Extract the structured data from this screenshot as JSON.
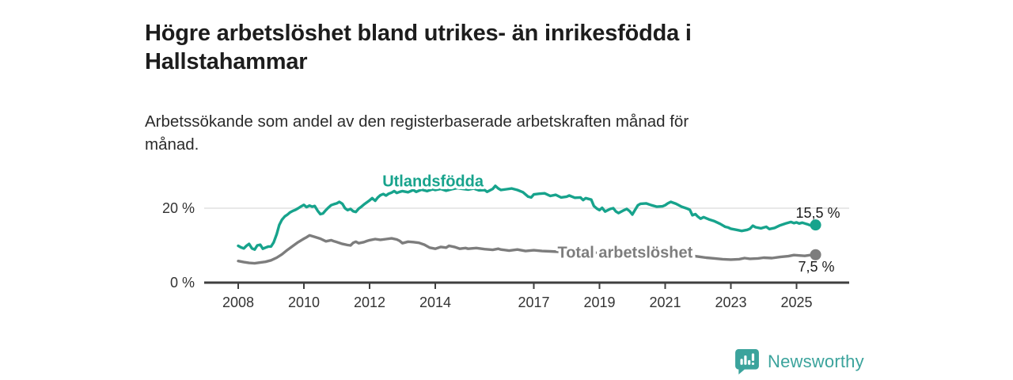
{
  "header": {
    "title": "Högre arbetslöshet bland utrikes- än inrikesfödda i Hallstahammar",
    "subtitle": "Arbetssökande som andel av den registerbaserade arbetskraften månad för månad."
  },
  "footer": {
    "brand": "Newsworthy",
    "logo_icon": "bar-chart-speech-bubble-icon",
    "brand_color": "#3ba39c"
  },
  "colors": {
    "foreign_born_line": "#17a38c",
    "total_line": "#7d7d7d",
    "axis": "#3f3f3f",
    "gridline": "#d9d9d9",
    "tick_text": "#333333",
    "value_label_text": "#1b1b1b"
  },
  "chart_data": {
    "type": "line",
    "title": "Högre arbetslöshet bland utrikes- än inrikesfödda i Hallstahammar",
    "subtitle": "Arbetssökande som andel av den registerbaserade arbetskraften månad för månad.",
    "unit": "%",
    "xlim": [
      2007.95,
      2025.75
    ],
    "ylim": [
      0,
      28
    ],
    "x_ticks": [
      {
        "value": 2008,
        "label": "2008"
      },
      {
        "value": 2010,
        "label": "2010"
      },
      {
        "value": 2012,
        "label": "2012"
      },
      {
        "value": 2014,
        "label": "2014"
      },
      {
        "value": 2017,
        "label": "2017"
      },
      {
        "value": 2019,
        "label": "2019"
      },
      {
        "value": 2021,
        "label": "2021"
      },
      {
        "value": 2023,
        "label": "2023"
      },
      {
        "value": 2025,
        "label": "2025"
      }
    ],
    "y_ticks": [
      {
        "value": 20,
        "label": "20 %",
        "grid": true
      },
      {
        "value": 0,
        "label": "0 %",
        "grid": false
      }
    ],
    "legend_position": "inline-labels",
    "series": [
      {
        "name": "Utlandsfödda",
        "color": "#17a38c",
        "end_value": 15.5,
        "end_label": "15,5 %",
        "end_label_side": "above",
        "label_at": [
          2013.93,
          27.3
        ],
        "points": [
          [
            2008.0,
            9.9
          ],
          [
            2008.08,
            9.5
          ],
          [
            2008.17,
            9.2
          ],
          [
            2008.25,
            9.9
          ],
          [
            2008.33,
            10.4
          ],
          [
            2008.42,
            9.2
          ],
          [
            2008.5,
            8.9
          ],
          [
            2008.58,
            10.0
          ],
          [
            2008.67,
            10.2
          ],
          [
            2008.75,
            9.1
          ],
          [
            2008.83,
            9.4
          ],
          [
            2008.92,
            9.7
          ],
          [
            2009.0,
            9.7
          ],
          [
            2009.08,
            10.8
          ],
          [
            2009.17,
            13.0
          ],
          [
            2009.25,
            15.5
          ],
          [
            2009.33,
            16.9
          ],
          [
            2009.42,
            17.8
          ],
          [
            2009.5,
            18.3
          ],
          [
            2009.58,
            18.9
          ],
          [
            2009.67,
            19.3
          ],
          [
            2009.75,
            19.6
          ],
          [
            2009.83,
            20.0
          ],
          [
            2009.92,
            20.5
          ],
          [
            2010.0,
            20.9
          ],
          [
            2010.08,
            20.3
          ],
          [
            2010.17,
            20.7
          ],
          [
            2010.25,
            20.4
          ],
          [
            2010.33,
            20.6
          ],
          [
            2010.42,
            19.3
          ],
          [
            2010.5,
            18.4
          ],
          [
            2010.58,
            18.6
          ],
          [
            2010.67,
            19.5
          ],
          [
            2010.75,
            20.2
          ],
          [
            2010.83,
            20.8
          ],
          [
            2010.92,
            21.1
          ],
          [
            2011.0,
            21.3
          ],
          [
            2011.08,
            21.7
          ],
          [
            2011.17,
            21.2
          ],
          [
            2011.25,
            20.0
          ],
          [
            2011.33,
            19.5
          ],
          [
            2011.42,
            19.8
          ],
          [
            2011.5,
            19.2
          ],
          [
            2011.58,
            19.0
          ],
          [
            2011.67,
            19.9
          ],
          [
            2011.75,
            20.4
          ],
          [
            2011.83,
            21.0
          ],
          [
            2011.92,
            21.6
          ],
          [
            2012.0,
            22.1
          ],
          [
            2012.08,
            22.7
          ],
          [
            2012.17,
            22.0
          ],
          [
            2012.25,
            22.9
          ],
          [
            2012.33,
            23.5
          ],
          [
            2012.42,
            23.8
          ],
          [
            2012.5,
            23.4
          ],
          [
            2012.58,
            23.9
          ],
          [
            2012.67,
            24.2
          ],
          [
            2012.75,
            24.6
          ],
          [
            2012.83,
            24.1
          ],
          [
            2012.92,
            24.4
          ],
          [
            2013.0,
            24.6
          ],
          [
            2013.17,
            24.3
          ],
          [
            2013.33,
            24.9
          ],
          [
            2013.42,
            24.4
          ],
          [
            2013.58,
            25.0
          ],
          [
            2013.75,
            24.6
          ],
          [
            2013.92,
            25.1
          ],
          [
            2014.0,
            24.9
          ],
          [
            2014.17,
            25.2
          ],
          [
            2014.33,
            24.7
          ],
          [
            2014.5,
            25.1
          ],
          [
            2014.67,
            25.4
          ],
          [
            2014.83,
            25.2
          ],
          [
            2015.0,
            25.0
          ],
          [
            2015.17,
            25.3
          ],
          [
            2015.33,
            24.8
          ],
          [
            2015.5,
            24.9
          ],
          [
            2015.58,
            24.4
          ],
          [
            2015.75,
            25.2
          ],
          [
            2015.83,
            26.0
          ],
          [
            2015.92,
            25.3
          ],
          [
            2016.0,
            24.9
          ],
          [
            2016.17,
            25.1
          ],
          [
            2016.33,
            25.3
          ],
          [
            2016.5,
            24.9
          ],
          [
            2016.67,
            24.3
          ],
          [
            2016.83,
            23.1
          ],
          [
            2016.92,
            22.9
          ],
          [
            2017.0,
            23.7
          ],
          [
            2017.17,
            23.9
          ],
          [
            2017.33,
            24.0
          ],
          [
            2017.5,
            23.3
          ],
          [
            2017.67,
            23.6
          ],
          [
            2017.83,
            22.9
          ],
          [
            2018.0,
            23.1
          ],
          [
            2018.08,
            23.4
          ],
          [
            2018.25,
            22.8
          ],
          [
            2018.42,
            22.9
          ],
          [
            2018.5,
            22.2
          ],
          [
            2018.58,
            22.7
          ],
          [
            2018.75,
            22.3
          ],
          [
            2018.83,
            20.6
          ],
          [
            2018.92,
            19.9
          ],
          [
            2019.0,
            19.5
          ],
          [
            2019.08,
            20.1
          ],
          [
            2019.17,
            19.1
          ],
          [
            2019.33,
            19.8
          ],
          [
            2019.42,
            20.0
          ],
          [
            2019.5,
            19.1
          ],
          [
            2019.58,
            18.7
          ],
          [
            2019.75,
            19.5
          ],
          [
            2019.83,
            19.8
          ],
          [
            2019.92,
            19.2
          ],
          [
            2020.0,
            18.3
          ],
          [
            2020.08,
            19.5
          ],
          [
            2020.17,
            20.8
          ],
          [
            2020.25,
            21.2
          ],
          [
            2020.42,
            21.3
          ],
          [
            2020.58,
            20.8
          ],
          [
            2020.75,
            20.4
          ],
          [
            2020.92,
            20.5
          ],
          [
            2021.0,
            20.8
          ],
          [
            2021.08,
            21.3
          ],
          [
            2021.17,
            21.7
          ],
          [
            2021.33,
            21.2
          ],
          [
            2021.5,
            20.4
          ],
          [
            2021.67,
            19.9
          ],
          [
            2021.75,
            19.6
          ],
          [
            2021.83,
            18.1
          ],
          [
            2021.92,
            18.4
          ],
          [
            2022.0,
            17.7
          ],
          [
            2022.08,
            17.2
          ],
          [
            2022.17,
            17.6
          ],
          [
            2022.33,
            17.0
          ],
          [
            2022.5,
            16.5
          ],
          [
            2022.67,
            15.8
          ],
          [
            2022.83,
            15.0
          ],
          [
            2022.92,
            14.8
          ],
          [
            2023.0,
            14.5
          ],
          [
            2023.17,
            14.2
          ],
          [
            2023.33,
            13.9
          ],
          [
            2023.5,
            14.2
          ],
          [
            2023.58,
            14.5
          ],
          [
            2023.67,
            15.3
          ],
          [
            2023.75,
            14.9
          ],
          [
            2023.92,
            14.6
          ],
          [
            2024.0,
            14.8
          ],
          [
            2024.08,
            15.0
          ],
          [
            2024.17,
            14.4
          ],
          [
            2024.33,
            14.7
          ],
          [
            2024.5,
            15.4
          ],
          [
            2024.67,
            15.9
          ],
          [
            2024.83,
            16.3
          ],
          [
            2024.92,
            16.0
          ],
          [
            2025.0,
            16.2
          ],
          [
            2025.08,
            15.9
          ],
          [
            2025.17,
            16.1
          ],
          [
            2025.33,
            15.7
          ],
          [
            2025.42,
            15.4
          ],
          [
            2025.58,
            15.5
          ]
        ]
      },
      {
        "name": "Total arbetslöshet",
        "color": "#7d7d7d",
        "end_value": 7.5,
        "end_label": "7,5 %",
        "end_label_side": "below",
        "label_at": [
          2019.78,
          8.2
        ],
        "points": [
          [
            2008.0,
            5.8
          ],
          [
            2008.17,
            5.5
          ],
          [
            2008.33,
            5.3
          ],
          [
            2008.5,
            5.2
          ],
          [
            2008.67,
            5.4
          ],
          [
            2008.83,
            5.6
          ],
          [
            2009.0,
            6.0
          ],
          [
            2009.17,
            6.7
          ],
          [
            2009.33,
            7.6
          ],
          [
            2009.5,
            8.8
          ],
          [
            2009.67,
            9.9
          ],
          [
            2009.83,
            10.9
          ],
          [
            2010.0,
            11.8
          ],
          [
            2010.08,
            12.2
          ],
          [
            2010.17,
            12.7
          ],
          [
            2010.33,
            12.3
          ],
          [
            2010.5,
            11.8
          ],
          [
            2010.67,
            11.1
          ],
          [
            2010.83,
            11.4
          ],
          [
            2010.92,
            11.1
          ],
          [
            2011.0,
            10.9
          ],
          [
            2011.17,
            10.4
          ],
          [
            2011.33,
            10.1
          ],
          [
            2011.42,
            10.0
          ],
          [
            2011.5,
            10.7
          ],
          [
            2011.58,
            11.0
          ],
          [
            2011.67,
            10.6
          ],
          [
            2011.83,
            10.9
          ],
          [
            2011.92,
            11.2
          ],
          [
            2012.0,
            11.4
          ],
          [
            2012.17,
            11.7
          ],
          [
            2012.33,
            11.5
          ],
          [
            2012.5,
            11.7
          ],
          [
            2012.67,
            11.9
          ],
          [
            2012.83,
            11.6
          ],
          [
            2012.92,
            11.2
          ],
          [
            2013.0,
            10.6
          ],
          [
            2013.17,
            11.0
          ],
          [
            2013.33,
            10.9
          ],
          [
            2013.5,
            10.7
          ],
          [
            2013.67,
            10.2
          ],
          [
            2013.83,
            9.4
          ],
          [
            2014.0,
            9.1
          ],
          [
            2014.17,
            9.6
          ],
          [
            2014.33,
            9.4
          ],
          [
            2014.42,
            9.9
          ],
          [
            2014.58,
            9.6
          ],
          [
            2014.75,
            9.1
          ],
          [
            2014.92,
            9.3
          ],
          [
            2015.0,
            9.1
          ],
          [
            2015.25,
            9.3
          ],
          [
            2015.5,
            9.0
          ],
          [
            2015.75,
            8.8
          ],
          [
            2015.92,
            9.1
          ],
          [
            2016.0,
            8.9
          ],
          [
            2016.25,
            8.6
          ],
          [
            2016.5,
            8.9
          ],
          [
            2016.75,
            8.5
          ],
          [
            2017.0,
            8.7
          ],
          [
            2017.25,
            8.5
          ],
          [
            2017.5,
            8.4
          ],
          [
            2017.75,
            8.3
          ],
          [
            2018.0,
            8.3
          ],
          [
            2018.5,
            8.1
          ],
          [
            2019.0,
            8.0
          ],
          [
            2019.5,
            7.9
          ],
          [
            2020.0,
            8.2
          ],
          [
            2020.5,
            8.0
          ],
          [
            2021.0,
            7.8
          ],
          [
            2021.5,
            7.4
          ],
          [
            2021.83,
            7.2
          ],
          [
            2022.0,
            7.0
          ],
          [
            2022.25,
            6.7
          ],
          [
            2022.5,
            6.5
          ],
          [
            2022.75,
            6.3
          ],
          [
            2023.0,
            6.2
          ],
          [
            2023.25,
            6.3
          ],
          [
            2023.42,
            6.6
          ],
          [
            2023.58,
            6.4
          ],
          [
            2023.83,
            6.5
          ],
          [
            2024.0,
            6.7
          ],
          [
            2024.25,
            6.6
          ],
          [
            2024.5,
            6.9
          ],
          [
            2024.75,
            7.1
          ],
          [
            2024.92,
            7.4
          ],
          [
            2025.08,
            7.3
          ],
          [
            2025.25,
            7.2
          ],
          [
            2025.42,
            7.4
          ],
          [
            2025.58,
            7.5
          ]
        ]
      }
    ]
  }
}
